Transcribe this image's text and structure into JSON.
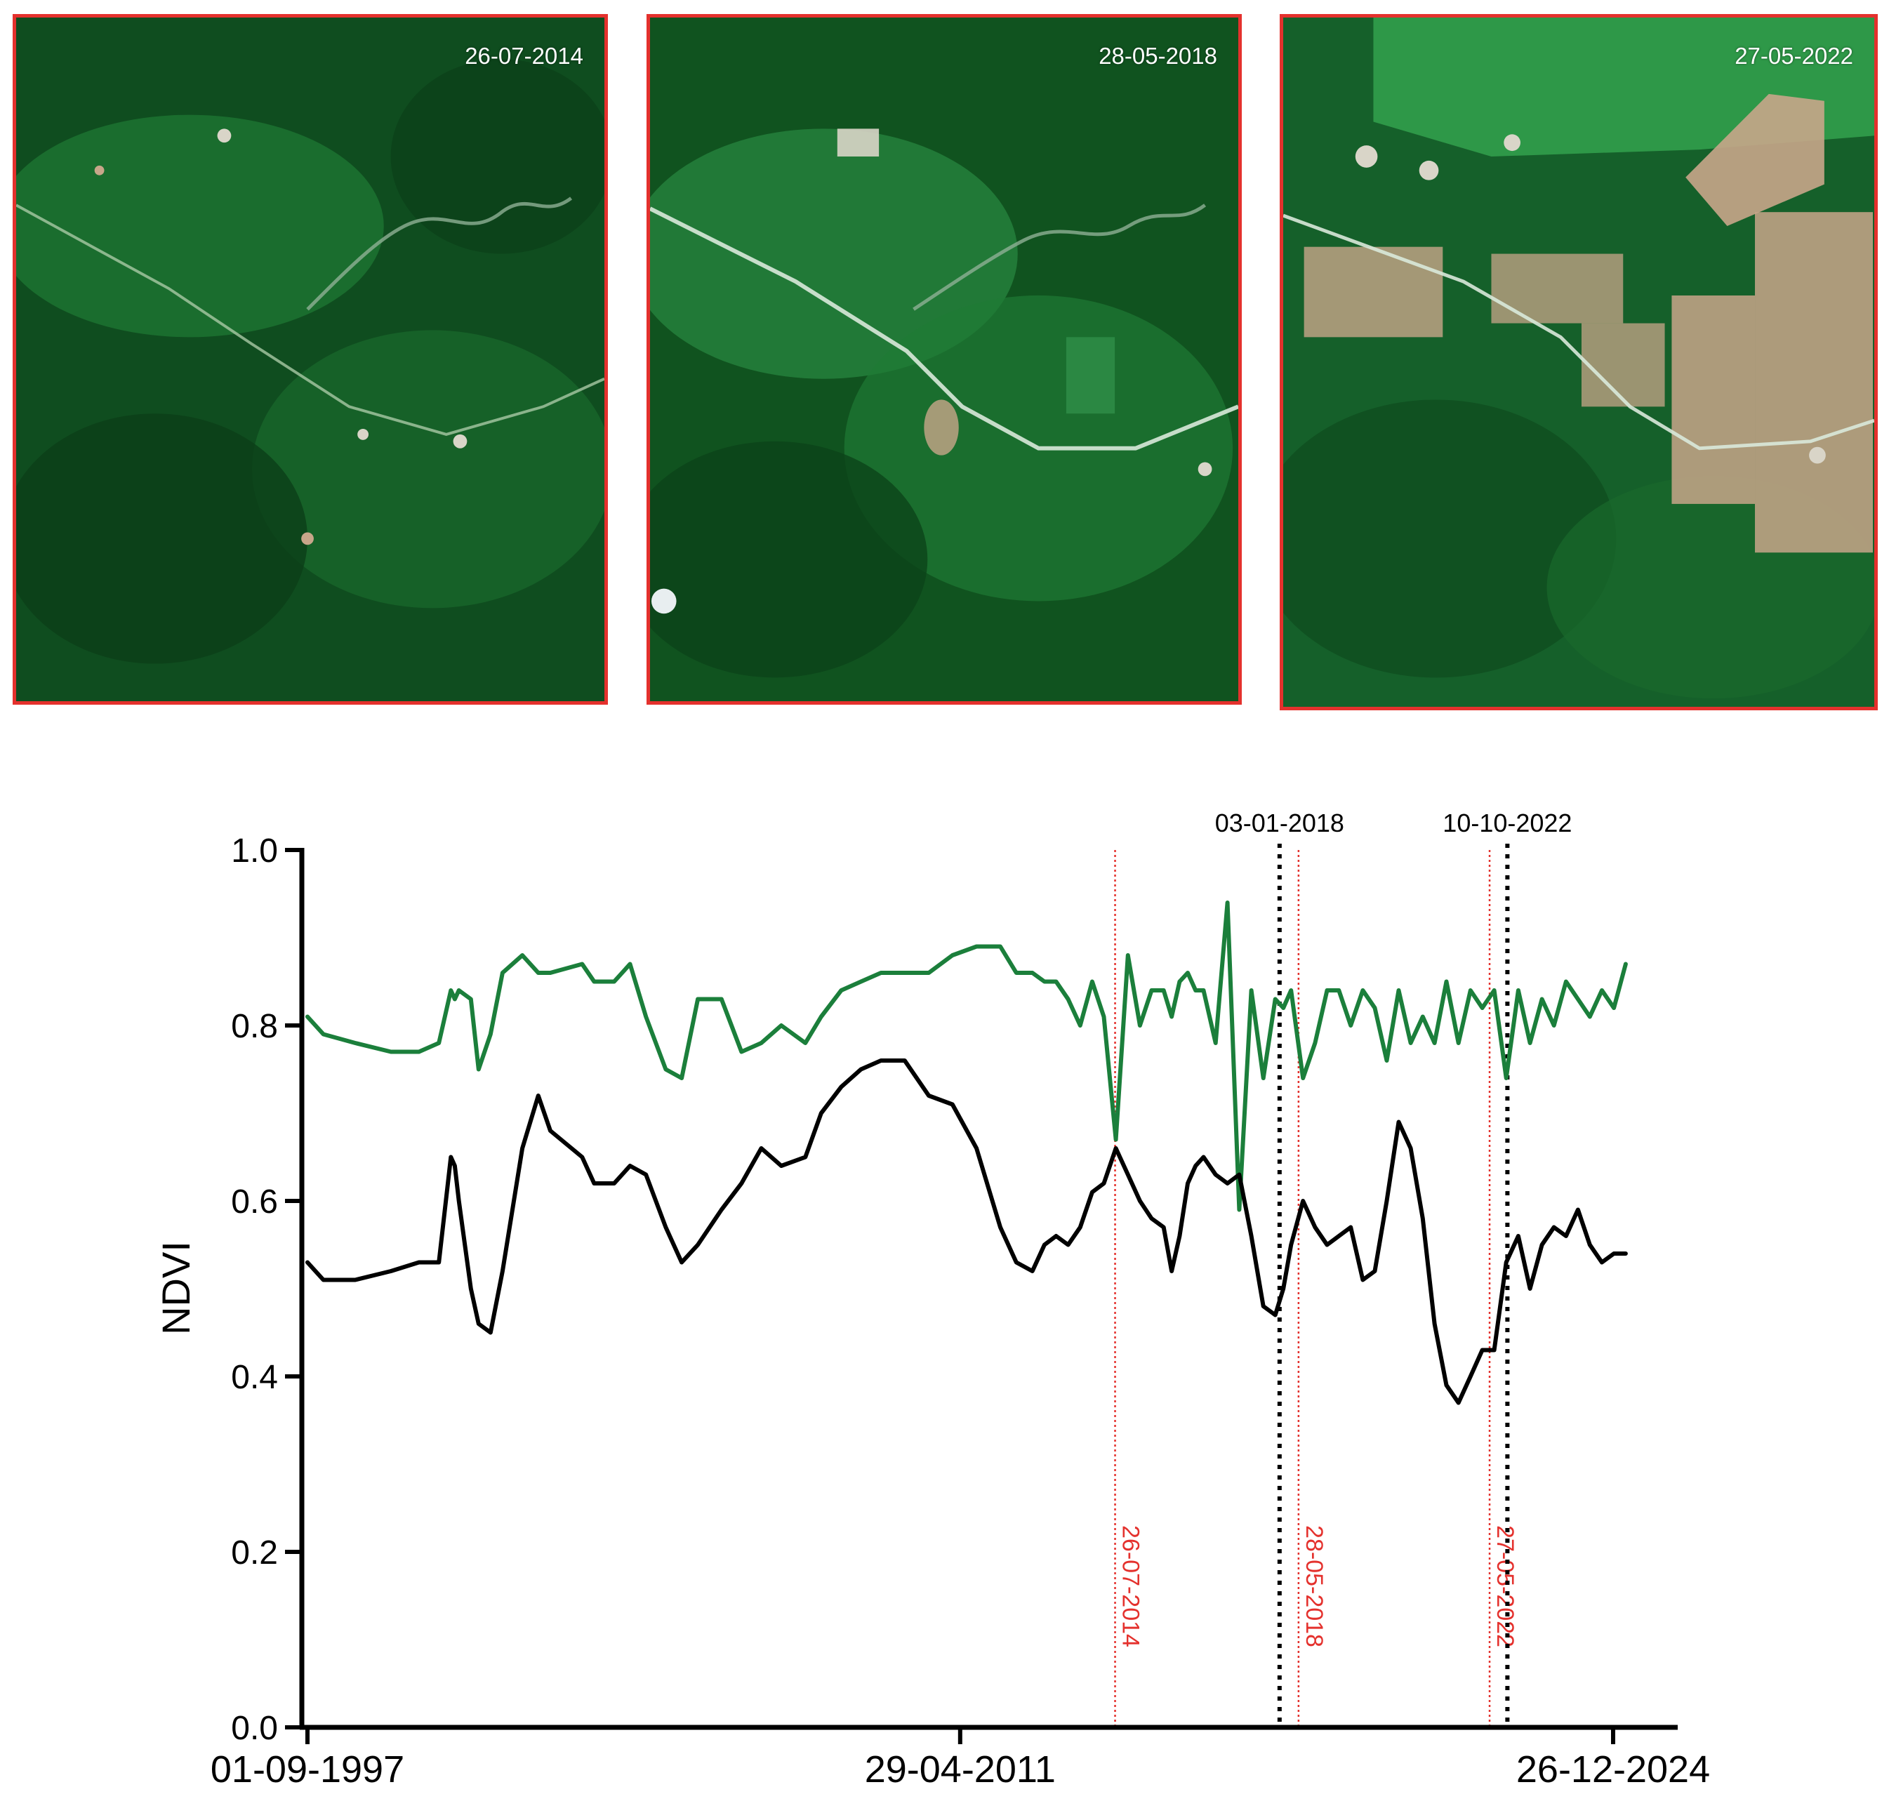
{
  "panels": [
    {
      "date": "26-07-2014",
      "scene": "dense forest with scattered clearings, river and small settlement along road"
    },
    {
      "date": "28-05-2018",
      "scene": "forest with new road, small plantation block and cleared patches"
    },
    {
      "date": "27-05-2022",
      "scene": "large plantation clearings, expanded settlement and cultivated blocks"
    }
  ],
  "colors": {
    "panel_border": "#e4312d",
    "forest_dark": "#0f4d1f",
    "forest_mid": "#1f7a34",
    "clearing": "#c8a68a",
    "green_series": "#1b7f3b",
    "black_series": "#000000",
    "red_marker": "#e4312d"
  },
  "chart_data": {
    "type": "line",
    "ylabel": "NDVI",
    "xlabel": "",
    "ylim": [
      0.0,
      1.0
    ],
    "yticks": [
      "0.0",
      "0.2",
      "0.4",
      "0.6",
      "0.8",
      "1.0"
    ],
    "xticks": [
      {
        "date": "1997-09-01",
        "label": "01-09-1997"
      },
      {
        "date": "2011-04-29",
        "label": "29-04-2011"
      },
      {
        "date": "2024-12-26",
        "label": "26-12-2024"
      }
    ],
    "xlim": [
      "1997-09-01",
      "2026-06-01"
    ],
    "event_lines_black": [
      {
        "date": "2018-01-03",
        "label": "03-01-2018"
      },
      {
        "date": "2022-10-10",
        "label": "10-10-2022"
      }
    ],
    "image_lines_red": [
      {
        "date": "2014-07-26",
        "label": "26-07-2014"
      },
      {
        "date": "2018-05-28",
        "label": "28-05-2018"
      },
      {
        "date": "2022-05-27",
        "label": "27-05-2022"
      }
    ],
    "series": [
      {
        "color": "#1b7f3b",
        "x": [
          "1997-09-01",
          "1998-01-01",
          "1998-09-01",
          "1999-06-01",
          "2000-01-01",
          "2000-06-01",
          "2000-09-01",
          "2000-10-01",
          "2000-11-01",
          "2001-02-01",
          "2001-04-01",
          "2001-07-01",
          "2001-10-01",
          "2002-03-01",
          "2002-07-01",
          "2002-10-01",
          "2003-06-01",
          "2003-09-01",
          "2004-02-01",
          "2004-06-01",
          "2004-10-01",
          "2005-03-01",
          "2005-07-01",
          "2005-11-01",
          "2006-05-01",
          "2006-10-01",
          "2007-03-01",
          "2007-08-01",
          "2008-02-01",
          "2008-06-01",
          "2008-11-01",
          "2009-04-01",
          "2009-09-01",
          "2010-03-01",
          "2010-09-01",
          "2011-03-01",
          "2011-09-01",
          "2012-03-01",
          "2012-07-01",
          "2012-11-01",
          "2013-02-01",
          "2013-05-01",
          "2013-08-01",
          "2013-11-01",
          "2014-02-01",
          "2014-05-01",
          "2014-08-01",
          "2014-11-01",
          "2015-02-01",
          "2015-05-01",
          "2015-08-01",
          "2015-10-01",
          "2015-12-01",
          "2016-02-01",
          "2016-04-01",
          "2016-06-01",
          "2016-09-01",
          "2016-12-01",
          "2017-03-01",
          "2017-06-01",
          "2017-09-01",
          "2017-12-01",
          "2018-02-01",
          "2018-04-01",
          "2018-07-01",
          "2018-10-01",
          "2019-01-01",
          "2019-04-01",
          "2019-07-01",
          "2019-10-01",
          "2020-01-01",
          "2020-04-01",
          "2020-07-01",
          "2020-10-01",
          "2021-01-01",
          "2021-04-01",
          "2021-07-01",
          "2021-10-01",
          "2022-01-01",
          "2022-04-01",
          "2022-07-01",
          "2022-10-01",
          "2023-01-01",
          "2023-04-01",
          "2023-07-01",
          "2023-10-01",
          "2024-01-01",
          "2024-04-01",
          "2024-07-01",
          "2024-10-01",
          "2025-01-01",
          "2025-04-01"
        ],
        "values": [
          0.81,
          0.79,
          0.78,
          0.77,
          0.77,
          0.78,
          0.84,
          0.83,
          0.84,
          0.83,
          0.75,
          0.79,
          0.86,
          0.88,
          0.86,
          0.86,
          0.87,
          0.85,
          0.85,
          0.87,
          0.81,
          0.75,
          0.74,
          0.83,
          0.83,
          0.77,
          0.78,
          0.8,
          0.78,
          0.81,
          0.84,
          0.85,
          0.86,
          0.86,
          0.86,
          0.88,
          0.89,
          0.89,
          0.86,
          0.86,
          0.85,
          0.85,
          0.83,
          0.8,
          0.85,
          0.81,
          0.67,
          0.88,
          0.8,
          0.84,
          0.84,
          0.81,
          0.85,
          0.86,
          0.84,
          0.84,
          0.78,
          0.94,
          0.59,
          0.84,
          0.74,
          0.83,
          0.82,
          0.84,
          0.74,
          0.78,
          0.84,
          0.84,
          0.8,
          0.84,
          0.82,
          0.76,
          0.84,
          0.78,
          0.81,
          0.78,
          0.85,
          0.78,
          0.84,
          0.82,
          0.84,
          0.74,
          0.84,
          0.78,
          0.83,
          0.8,
          0.85,
          0.83,
          0.81,
          0.84,
          0.82,
          0.87
        ]
      },
      {
        "color": "#000000",
        "x": [
          "1997-09-01",
          "1998-01-01",
          "1998-09-01",
          "1999-06-01",
          "2000-01-01",
          "2000-06-01",
          "2000-09-01",
          "2000-10-01",
          "2000-11-01",
          "2001-02-01",
          "2001-04-01",
          "2001-07-01",
          "2001-10-01",
          "2002-03-01",
          "2002-07-01",
          "2002-10-01",
          "2003-06-01",
          "2003-09-01",
          "2004-02-01",
          "2004-06-01",
          "2004-10-01",
          "2005-03-01",
          "2005-07-01",
          "2005-11-01",
          "2006-05-01",
          "2006-10-01",
          "2007-03-01",
          "2007-08-01",
          "2008-02-01",
          "2008-06-01",
          "2008-11-01",
          "2009-04-01",
          "2009-09-01",
          "2010-03-01",
          "2010-09-01",
          "2011-03-01",
          "2011-09-01",
          "2012-03-01",
          "2012-07-01",
          "2012-11-01",
          "2013-02-01",
          "2013-05-01",
          "2013-08-01",
          "2013-11-01",
          "2014-02-01",
          "2014-05-01",
          "2014-08-01",
          "2014-11-01",
          "2015-02-01",
          "2015-05-01",
          "2015-08-01",
          "2015-10-01",
          "2015-12-01",
          "2016-02-01",
          "2016-04-01",
          "2016-06-01",
          "2016-09-01",
          "2016-12-01",
          "2017-03-01",
          "2017-06-01",
          "2017-09-01",
          "2017-12-01",
          "2018-02-01",
          "2018-04-01",
          "2018-07-01",
          "2018-10-01",
          "2019-01-01",
          "2019-04-01",
          "2019-07-01",
          "2019-10-01",
          "2020-01-01",
          "2020-04-01",
          "2020-07-01",
          "2020-10-01",
          "2021-01-01",
          "2021-04-01",
          "2021-07-01",
          "2021-10-01",
          "2022-01-01",
          "2022-04-01",
          "2022-07-01",
          "2022-10-01",
          "2023-01-01",
          "2023-04-01",
          "2023-07-01",
          "2023-10-01",
          "2024-01-01",
          "2024-04-01",
          "2024-07-01",
          "2024-10-01",
          "2025-01-01",
          "2025-04-01"
        ],
        "values": [
          0.53,
          0.51,
          0.51,
          0.52,
          0.53,
          0.53,
          0.65,
          0.64,
          0.6,
          0.5,
          0.46,
          0.45,
          0.52,
          0.66,
          0.72,
          0.68,
          0.65,
          0.62,
          0.62,
          0.64,
          0.63,
          0.57,
          0.53,
          0.55,
          0.59,
          0.62,
          0.66,
          0.64,
          0.65,
          0.7,
          0.73,
          0.75,
          0.76,
          0.76,
          0.72,
          0.71,
          0.66,
          0.57,
          0.53,
          0.52,
          0.55,
          0.56,
          0.55,
          0.57,
          0.61,
          0.62,
          0.66,
          0.63,
          0.6,
          0.58,
          0.57,
          0.52,
          0.56,
          0.62,
          0.64,
          0.65,
          0.63,
          0.62,
          0.63,
          0.56,
          0.48,
          0.47,
          0.5,
          0.55,
          0.6,
          0.57,
          0.55,
          0.56,
          0.57,
          0.51,
          0.52,
          0.6,
          0.69,
          0.66,
          0.58,
          0.46,
          0.39,
          0.37,
          0.4,
          0.43,
          0.43,
          0.53,
          0.56,
          0.5,
          0.55,
          0.57,
          0.56,
          0.59,
          0.55,
          0.53,
          0.54,
          0.54
        ]
      }
    ]
  }
}
